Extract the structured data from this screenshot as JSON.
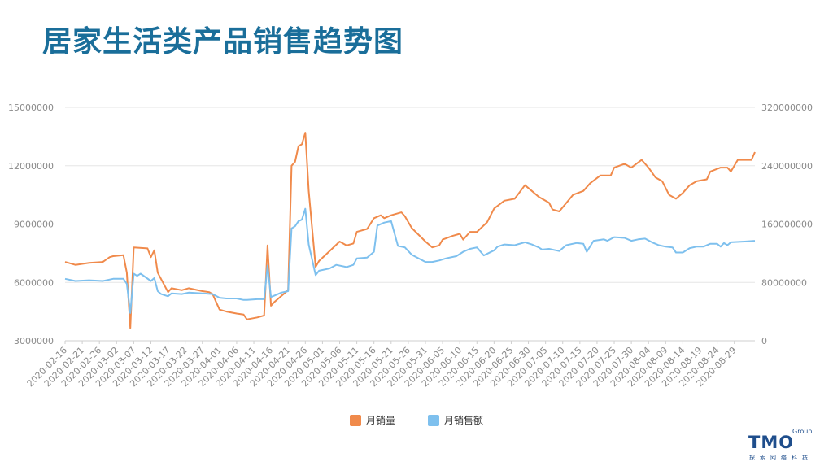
{
  "title": "居家生活类产品销售趋势图",
  "logo": {
    "main": "TMO",
    "group": "Group",
    "sub": "探索网络科技"
  },
  "chart_data": {
    "type": "line",
    "colors": {
      "series1": "#f08a4b",
      "series2": "#7ec0ee",
      "grid": "#e6e6e6",
      "tick": "#8a8a8a"
    },
    "legend_position": "bottom-center",
    "grid": true,
    "y_left": {
      "ticks": [
        "3000000",
        "6000000",
        "9000000",
        "12000000",
        "15000000"
      ],
      "ylim": [
        3000000,
        15000000
      ]
    },
    "y_right": {
      "ticks": [
        "0",
        "80000000",
        "160000000",
        "240000000",
        "320000000"
      ],
      "ylim": [
        0,
        320000000
      ]
    },
    "x_tick_labels": [
      "2020-02-16",
      "2020-02-21",
      "2020-02-26",
      "2020-03-02",
      "2020-03-07",
      "2020-03-12",
      "2020-03-17",
      "2020-03-22",
      "2020-03-27",
      "2020-04-01",
      "2020-04-06",
      "2020-04-11",
      "2020-04-16",
      "2020-04-21",
      "2020-04-26",
      "2020-05-01",
      "2020-05-06",
      "2020-05-11",
      "2020-05-16",
      "2020-05-21",
      "2020-05-26",
      "2020-05-31",
      "2020-06-05",
      "2020-06-10",
      "2020-06-15",
      "2020-06-20",
      "2020-06-25",
      "2020-06-30",
      "2020-07-05",
      "2020-07-10",
      "2020-07-15",
      "2020-07-20",
      "2020-07-25",
      "2020-07-30",
      "2020-08-04",
      "2020-08-09",
      "2020-08-14",
      "2020-08-19",
      "2020-08-24",
      "2020-08-29"
    ],
    "series": [
      {
        "name": "月销量",
        "axis": "left",
        "points": [
          [
            "2020-02-16",
            7050000
          ],
          [
            "2020-02-19",
            6900000
          ],
          [
            "2020-02-23",
            7000000
          ],
          [
            "2020-02-27",
            7050000
          ],
          [
            "2020-02-29",
            7300000
          ],
          [
            "2020-03-01",
            7350000
          ],
          [
            "2020-03-04",
            7400000
          ],
          [
            "2020-03-05",
            6500000
          ],
          [
            "2020-03-06",
            3650000
          ],
          [
            "2020-03-07",
            7800000
          ],
          [
            "2020-03-11",
            7750000
          ],
          [
            "2020-03-12",
            7300000
          ],
          [
            "2020-03-13",
            7650000
          ],
          [
            "2020-03-14",
            6500000
          ],
          [
            "2020-03-17",
            5500000
          ],
          [
            "2020-03-18",
            5700000
          ],
          [
            "2020-03-21",
            5600000
          ],
          [
            "2020-03-23",
            5700000
          ],
          [
            "2020-03-27",
            5550000
          ],
          [
            "2020-03-29",
            5500000
          ],
          [
            "2020-03-30",
            5400000
          ],
          [
            "2020-03-31",
            5000000
          ],
          [
            "2020-04-01",
            4600000
          ],
          [
            "2020-04-03",
            4500000
          ],
          [
            "2020-04-06",
            4400000
          ],
          [
            "2020-04-08",
            4350000
          ],
          [
            "2020-04-09",
            4100000
          ],
          [
            "2020-04-12",
            4200000
          ],
          [
            "2020-04-14",
            4300000
          ],
          [
            "2020-04-15",
            7900000
          ],
          [
            "2020-04-16",
            4800000
          ],
          [
            "2020-04-17",
            5000000
          ],
          [
            "2020-04-19",
            5300000
          ],
          [
            "2020-04-21",
            5600000
          ],
          [
            "2020-04-22",
            12000000
          ],
          [
            "2020-04-23",
            12200000
          ],
          [
            "2020-04-24",
            13000000
          ],
          [
            "2020-04-25",
            13100000
          ],
          [
            "2020-04-26",
            13700000
          ],
          [
            "2020-04-27",
            10700000
          ],
          [
            "2020-04-29",
            6800000
          ],
          [
            "2020-04-30",
            7100000
          ],
          [
            "2020-05-03",
            7600000
          ],
          [
            "2020-05-06",
            8100000
          ],
          [
            "2020-05-08",
            7900000
          ],
          [
            "2020-05-10",
            8000000
          ],
          [
            "2020-05-11",
            8600000
          ],
          [
            "2020-05-14",
            8750000
          ],
          [
            "2020-05-16",
            9300000
          ],
          [
            "2020-05-18",
            9450000
          ],
          [
            "2020-05-19",
            9300000
          ],
          [
            "2020-05-21",
            9450000
          ],
          [
            "2020-05-24",
            9600000
          ],
          [
            "2020-05-25",
            9400000
          ],
          [
            "2020-05-27",
            8800000
          ],
          [
            "2020-05-31",
            8100000
          ],
          [
            "2020-06-02",
            7800000
          ],
          [
            "2020-06-04",
            7900000
          ],
          [
            "2020-06-05",
            8200000
          ],
          [
            "2020-06-08",
            8400000
          ],
          [
            "2020-06-10",
            8500000
          ],
          [
            "2020-06-11",
            8200000
          ],
          [
            "2020-06-13",
            8600000
          ],
          [
            "2020-06-15",
            8600000
          ],
          [
            "2020-06-18",
            9100000
          ],
          [
            "2020-06-20",
            9800000
          ],
          [
            "2020-06-23",
            10200000
          ],
          [
            "2020-06-26",
            10300000
          ],
          [
            "2020-06-29",
            11000000
          ],
          [
            "2020-07-01",
            10700000
          ],
          [
            "2020-07-03",
            10400000
          ],
          [
            "2020-07-06",
            10100000
          ],
          [
            "2020-07-07",
            9750000
          ],
          [
            "2020-07-09",
            9650000
          ],
          [
            "2020-07-13",
            10500000
          ],
          [
            "2020-07-16",
            10700000
          ],
          [
            "2020-07-18",
            11100000
          ],
          [
            "2020-07-21",
            11500000
          ],
          [
            "2020-07-24",
            11500000
          ],
          [
            "2020-07-25",
            11900000
          ],
          [
            "2020-07-28",
            12100000
          ],
          [
            "2020-07-30",
            11900000
          ],
          [
            "2020-08-02",
            12300000
          ],
          [
            "2020-08-04",
            11900000
          ],
          [
            "2020-08-06",
            11400000
          ],
          [
            "2020-08-08",
            11200000
          ],
          [
            "2020-08-10",
            10500000
          ],
          [
            "2020-08-12",
            10300000
          ],
          [
            "2020-08-14",
            10600000
          ],
          [
            "2020-08-16",
            11000000
          ],
          [
            "2020-08-18",
            11200000
          ],
          [
            "2020-08-21",
            11300000
          ],
          [
            "2020-08-22",
            11700000
          ],
          [
            "2020-08-25",
            11900000
          ],
          [
            "2020-08-27",
            11900000
          ],
          [
            "2020-08-28",
            11700000
          ],
          [
            "2020-08-30",
            12300000
          ],
          [
            "2020-09-01",
            12300000
          ],
          [
            "2020-09-03",
            12300000
          ],
          [
            "2020-09-04",
            12700000
          ]
        ]
      },
      {
        "name": "月销售额",
        "axis": "right",
        "points": [
          [
            "2020-02-16",
            85000000
          ],
          [
            "2020-02-19",
            82000000
          ],
          [
            "2020-02-23",
            83000000
          ],
          [
            "2020-02-27",
            82000000
          ],
          [
            "2020-03-01",
            85000000
          ],
          [
            "2020-03-04",
            85000000
          ],
          [
            "2020-03-05",
            78000000
          ],
          [
            "2020-03-06",
            38000000
          ],
          [
            "2020-03-07",
            92000000
          ],
          [
            "2020-03-08",
            89000000
          ],
          [
            "2020-03-09",
            92000000
          ],
          [
            "2020-03-12",
            82000000
          ],
          [
            "2020-03-13",
            86000000
          ],
          [
            "2020-03-14",
            68000000
          ],
          [
            "2020-03-15",
            64000000
          ],
          [
            "2020-03-17",
            61000000
          ],
          [
            "2020-03-18",
            65000000
          ],
          [
            "2020-03-21",
            64000000
          ],
          [
            "2020-03-23",
            66000000
          ],
          [
            "2020-03-27",
            65000000
          ],
          [
            "2020-03-30",
            64000000
          ],
          [
            "2020-04-01",
            59000000
          ],
          [
            "2020-04-03",
            58000000
          ],
          [
            "2020-04-06",
            58000000
          ],
          [
            "2020-04-08",
            56000000
          ],
          [
            "2020-04-09",
            56000000
          ],
          [
            "2020-04-12",
            57000000
          ],
          [
            "2020-04-14",
            57000000
          ],
          [
            "2020-04-15",
            103000000
          ],
          [
            "2020-04-16",
            60000000
          ],
          [
            "2020-04-17",
            62000000
          ],
          [
            "2020-04-19",
            66000000
          ],
          [
            "2020-04-21",
            68000000
          ],
          [
            "2020-04-22",
            154000000
          ],
          [
            "2020-04-23",
            157000000
          ],
          [
            "2020-04-24",
            164000000
          ],
          [
            "2020-04-25",
            166000000
          ],
          [
            "2020-04-26",
            181000000
          ],
          [
            "2020-04-27",
            132000000
          ],
          [
            "2020-04-29",
            90000000
          ],
          [
            "2020-04-30",
            96000000
          ],
          [
            "2020-05-03",
            99000000
          ],
          [
            "2020-05-05",
            104000000
          ],
          [
            "2020-05-08",
            101000000
          ],
          [
            "2020-05-10",
            104000000
          ],
          [
            "2020-05-11",
            113000000
          ],
          [
            "2020-05-14",
            114000000
          ],
          [
            "2020-05-16",
            122000000
          ],
          [
            "2020-05-17",
            158000000
          ],
          [
            "2020-05-19",
            162000000
          ],
          [
            "2020-05-21",
            164000000
          ],
          [
            "2020-05-23",
            130000000
          ],
          [
            "2020-05-25",
            128000000
          ],
          [
            "2020-05-27",
            118000000
          ],
          [
            "2020-05-31",
            108000000
          ],
          [
            "2020-06-02",
            108000000
          ],
          [
            "2020-06-04",
            110000000
          ],
          [
            "2020-06-06",
            113000000
          ],
          [
            "2020-06-09",
            116000000
          ],
          [
            "2020-06-11",
            122000000
          ],
          [
            "2020-06-13",
            126000000
          ],
          [
            "2020-06-15",
            128000000
          ],
          [
            "2020-06-17",
            117000000
          ],
          [
            "2020-06-20",
            124000000
          ],
          [
            "2020-06-21",
            129000000
          ],
          [
            "2020-06-23",
            132000000
          ],
          [
            "2020-06-26",
            131000000
          ],
          [
            "2020-06-29",
            135000000
          ],
          [
            "2020-07-01",
            132000000
          ],
          [
            "2020-07-03",
            128000000
          ],
          [
            "2020-07-04",
            125000000
          ],
          [
            "2020-07-06",
            126000000
          ],
          [
            "2020-07-09",
            123000000
          ],
          [
            "2020-07-11",
            131000000
          ],
          [
            "2020-07-14",
            134000000
          ],
          [
            "2020-07-16",
            133000000
          ],
          [
            "2020-07-17",
            122000000
          ],
          [
            "2020-07-19",
            137000000
          ],
          [
            "2020-07-22",
            139000000
          ],
          [
            "2020-07-23",
            137000000
          ],
          [
            "2020-07-25",
            142000000
          ],
          [
            "2020-07-28",
            141000000
          ],
          [
            "2020-07-30",
            137000000
          ],
          [
            "2020-08-01",
            139000000
          ],
          [
            "2020-08-03",
            140000000
          ],
          [
            "2020-08-05",
            135000000
          ],
          [
            "2020-08-07",
            131000000
          ],
          [
            "2020-08-09",
            129000000
          ],
          [
            "2020-08-11",
            128000000
          ],
          [
            "2020-08-12",
            121000000
          ],
          [
            "2020-08-14",
            121000000
          ],
          [
            "2020-08-16",
            127000000
          ],
          [
            "2020-08-18",
            129000000
          ],
          [
            "2020-08-20",
            129000000
          ],
          [
            "2020-08-22",
            133000000
          ],
          [
            "2020-08-24",
            133000000
          ],
          [
            "2020-08-25",
            129000000
          ],
          [
            "2020-08-26",
            134000000
          ],
          [
            "2020-08-27",
            131000000
          ],
          [
            "2020-08-28",
            135000000
          ],
          [
            "2020-09-01",
            136000000
          ],
          [
            "2020-09-04",
            137000000
          ]
        ]
      }
    ]
  }
}
